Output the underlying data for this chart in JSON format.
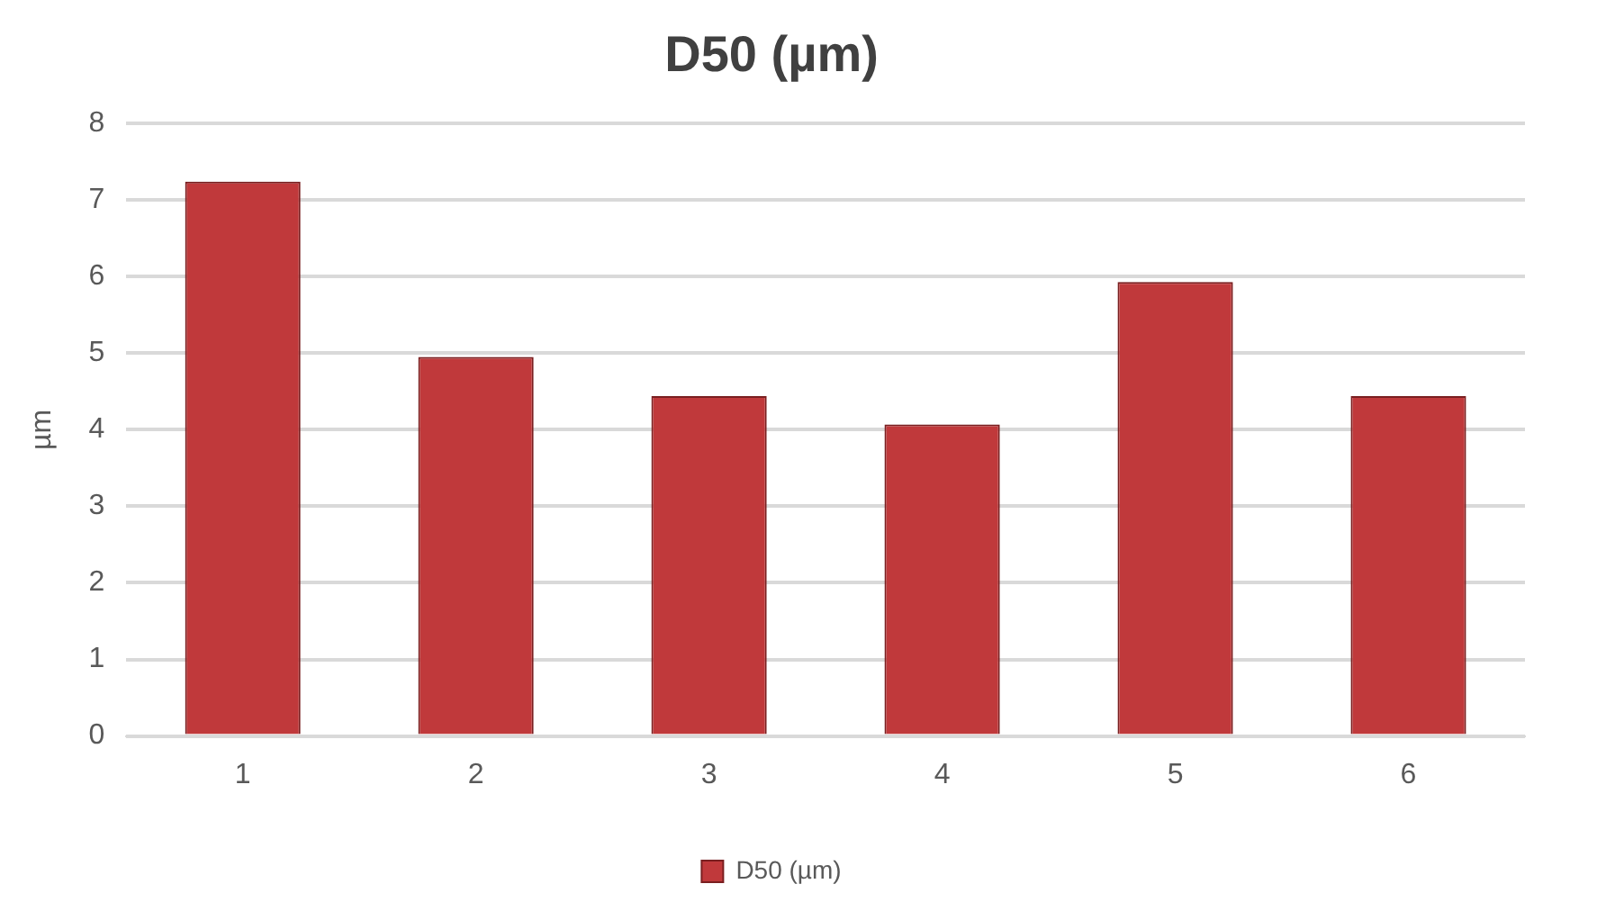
{
  "chart_data": {
    "type": "bar",
    "title": "D50 (µm)",
    "ylabel": "µm",
    "categories": [
      "1",
      "2",
      "3",
      "4",
      "5",
      "6"
    ],
    "series": [
      {
        "name": "D50 (µm)",
        "color": "#c0393b",
        "values": [
          7.24,
          4.95,
          4.44,
          4.07,
          5.93,
          4.44
        ]
      }
    ],
    "ylim": [
      0,
      8
    ],
    "yticks": [
      0,
      1,
      2,
      3,
      4,
      5,
      6,
      7,
      8
    ],
    "grid": "y",
    "legend": "bottom"
  }
}
